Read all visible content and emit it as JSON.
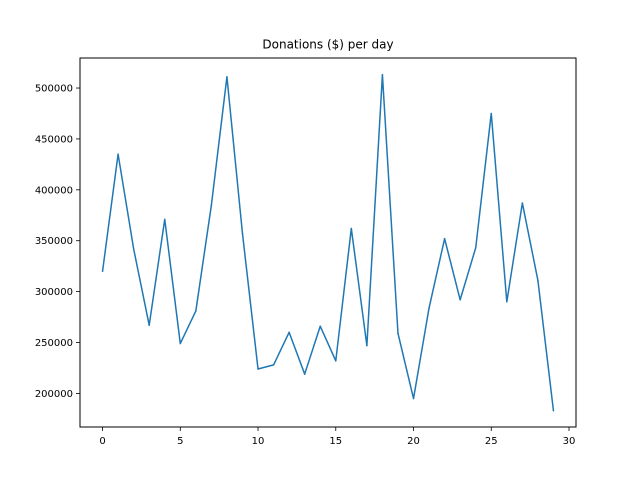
{
  "chart_data": {
    "type": "line",
    "title": "Donations ($) per day",
    "xlabel": "",
    "ylabel": "",
    "xlim": [
      -1.45,
      30.45
    ],
    "ylim": [
      167000,
      529500
    ],
    "xticks": [
      0,
      5,
      10,
      15,
      20,
      25,
      30
    ],
    "yticks": [
      200000,
      250000,
      300000,
      350000,
      400000,
      450000,
      500000
    ],
    "grid": false,
    "series": [
      {
        "color": "#1f77b4",
        "x": [
          0,
          1,
          2,
          3,
          4,
          5,
          6,
          7,
          8,
          9,
          10,
          11,
          12,
          13,
          14,
          15,
          16,
          17,
          18,
          19,
          20,
          21,
          22,
          23,
          24,
          25,
          26,
          27,
          28,
          29
        ],
        "values": [
          320000,
          435000,
          342000,
          267000,
          371000,
          249000,
          281000,
          385000,
          511000,
          357000,
          224000,
          228000,
          260000,
          219000,
          266000,
          232000,
          362000,
          247000,
          513000,
          259000,
          195000,
          284000,
          352000,
          292000,
          343000,
          475000,
          290000,
          387000,
          311000,
          183000
        ]
      }
    ]
  }
}
